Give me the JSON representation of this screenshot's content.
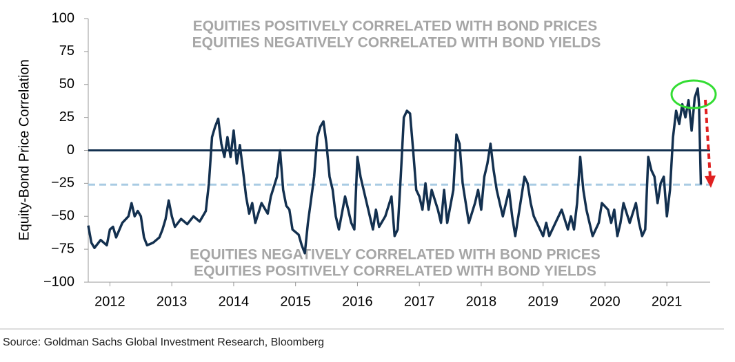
{
  "chart_data": {
    "type": "line",
    "y_label": "Equity-Bond Price Correlation",
    "annotations": [
      "EQUITIES POSITIVELY CORRELATED WITH BOND PRICES",
      "EQUITIES NEGATIVELY CORRELATED WITH BOND YIELDS",
      "EQUITIES NEGATIVELY CORRELATED WITH BOND PRICES",
      "EQUITIES POSITIVELY CORRELATED WITH BOND YIELDS"
    ],
    "source": "Source: Goldman Sachs Global Investment Research, Bloomberg",
    "xlim": [
      2011.65,
      2021.7
    ],
    "xticks": [
      2012,
      2013,
      2014,
      2015,
      2016,
      2017,
      2018,
      2019,
      2020,
      2021
    ],
    "ylim": [
      -100,
      100
    ],
    "yticks": [
      100,
      75,
      50,
      25,
      0,
      {
        "value": -25,
        "label": "−25"
      },
      {
        "value": -50,
        "label": "−50"
      },
      {
        "value": -75,
        "label": "−75"
      },
      {
        "value": -100,
        "label": "−100"
      }
    ],
    "zero_line": 0,
    "reference_line": -26,
    "reference_color": "#a9cbe3",
    "series": [
      {
        "color": "#13304f",
        "x": [
          2011.65,
          2011.7,
          2011.75,
          2011.85,
          2011.95,
          2012.0,
          2012.05,
          2012.1,
          2012.2,
          2012.3,
          2012.35,
          2012.4,
          2012.45,
          2012.5,
          2012.55,
          2012.6,
          2012.7,
          2012.8,
          2012.85,
          2012.9,
          2012.95,
          2013.0,
          2013.05,
          2013.15,
          2013.25,
          2013.35,
          2013.45,
          2013.55,
          2013.6,
          2013.65,
          2013.7,
          2013.75,
          2013.8,
          2013.85,
          2013.9,
          2013.95,
          2014.0,
          2014.05,
          2014.1,
          2014.15,
          2014.2,
          2014.25,
          2014.3,
          2014.35,
          2014.45,
          2014.55,
          2014.6,
          2014.7,
          2014.75,
          2014.8,
          2014.85,
          2014.9,
          2014.95,
          2015.05,
          2015.1,
          2015.15,
          2015.2,
          2015.3,
          2015.35,
          2015.4,
          2015.45,
          2015.5,
          2015.55,
          2015.6,
          2015.65,
          2015.7,
          2015.8,
          2015.85,
          2015.9,
          2015.95,
          2016.0,
          2016.05,
          2016.1,
          2016.15,
          2016.2,
          2016.25,
          2016.3,
          2016.35,
          2016.45,
          2016.55,
          2016.6,
          2016.65,
          2016.7,
          2016.75,
          2016.8,
          2016.85,
          2016.9,
          2016.95,
          2017.0,
          2017.05,
          2017.1,
          2017.15,
          2017.2,
          2017.3,
          2017.35,
          2017.4,
          2017.45,
          2017.55,
          2017.6,
          2017.65,
          2017.7,
          2017.75,
          2017.8,
          2017.9,
          2017.95,
          2018.0,
          2018.05,
          2018.1,
          2018.15,
          2018.2,
          2018.25,
          2018.3,
          2018.35,
          2018.45,
          2018.5,
          2018.55,
          2018.65,
          2018.7,
          2018.75,
          2018.8,
          2018.85,
          2018.95,
          2019.0,
          2019.05,
          2019.1,
          2019.2,
          2019.3,
          2019.4,
          2019.45,
          2019.5,
          2019.55,
          2019.6,
          2019.65,
          2019.7,
          2019.8,
          2019.9,
          2019.95,
          2020.05,
          2020.1,
          2020.15,
          2020.2,
          2020.25,
          2020.3,
          2020.4,
          2020.5,
          2020.55,
          2020.6,
          2020.65,
          2020.7,
          2020.75,
          2020.8,
          2020.85,
          2020.9,
          2020.95,
          2021.0,
          2021.05,
          2021.1,
          2021.15,
          2021.2,
          2021.25,
          2021.3,
          2021.35,
          2021.4,
          2021.45,
          2021.5,
          2021.52,
          2021.55
        ],
        "values": [
          -57,
          -70,
          -74,
          -68,
          -72,
          -60,
          -58,
          -66,
          -55,
          -50,
          -40,
          -50,
          -46,
          -50,
          -66,
          -72,
          -70,
          -66,
          -60,
          -52,
          -38,
          -50,
          -58,
          -52,
          -56,
          -50,
          -54,
          -46,
          -25,
          10,
          18,
          24,
          5,
          -5,
          10,
          -5,
          15,
          -10,
          4,
          -15,
          -35,
          -48,
          -40,
          -55,
          -40,
          -48,
          -35,
          -20,
          0,
          -30,
          -42,
          -45,
          -60,
          -64,
          -72,
          -78,
          -55,
          -20,
          10,
          18,
          22,
          5,
          -20,
          -30,
          -50,
          -60,
          -35,
          -45,
          -55,
          -60,
          -5,
          -20,
          -30,
          -40,
          -50,
          -60,
          -45,
          -58,
          -50,
          -35,
          -65,
          -60,
          -20,
          25,
          30,
          28,
          0,
          -30,
          -35,
          -45,
          -25,
          -45,
          -30,
          -45,
          -55,
          -30,
          -55,
          -30,
          12,
          5,
          -25,
          -40,
          -55,
          -40,
          -30,
          -45,
          -20,
          -10,
          5,
          -15,
          -30,
          -40,
          -50,
          -30,
          -50,
          -65,
          -35,
          -20,
          -25,
          -40,
          -50,
          -60,
          -65,
          -55,
          -65,
          -55,
          -45,
          -60,
          -50,
          -60,
          -40,
          -5,
          -30,
          -45,
          -65,
          -55,
          -40,
          -45,
          -55,
          -45,
          -65,
          -55,
          -40,
          -55,
          -40,
          -55,
          -65,
          -60,
          -5,
          -15,
          -20,
          -40,
          -25,
          -20,
          -50,
          -30,
          10,
          30,
          20,
          35,
          25,
          38,
          15,
          40,
          47,
          35,
          -26
        ]
      }
    ]
  }
}
